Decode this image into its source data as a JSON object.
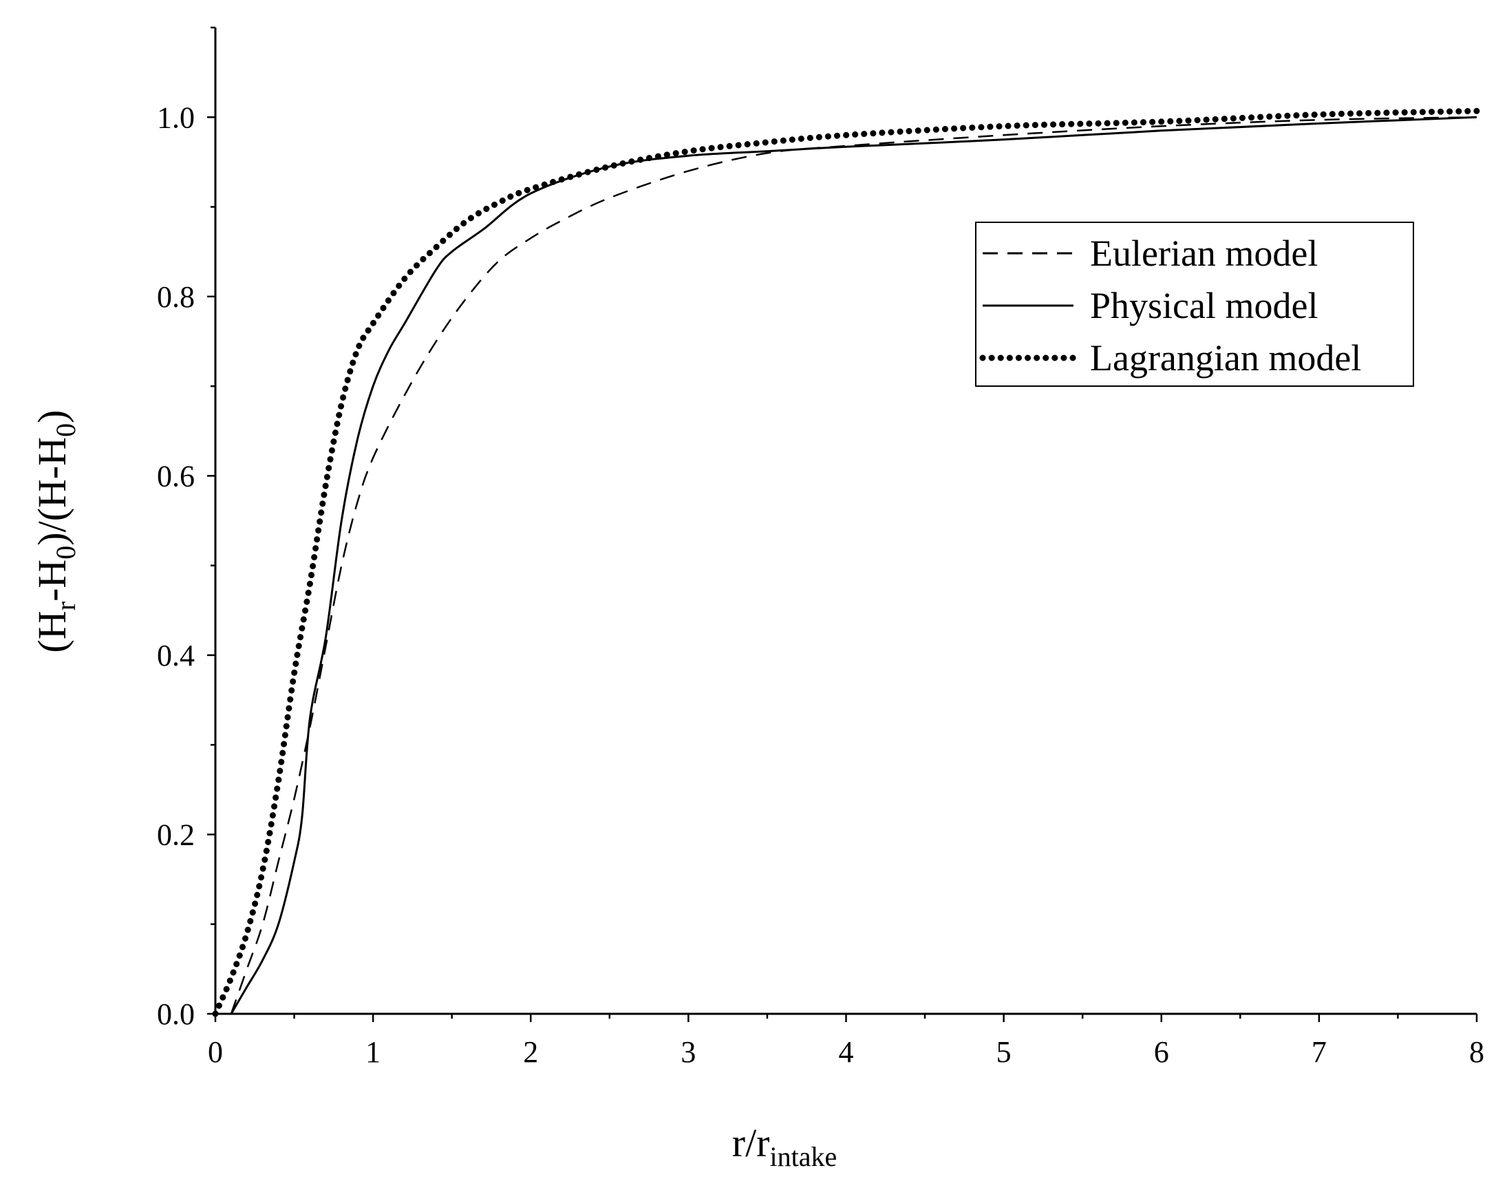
{
  "chart_data": {
    "type": "line",
    "xlabel": {
      "main": "r/r",
      "sub": "intake"
    },
    "ylabel": {
      "p1": "(H",
      "s1": "r",
      "p2": "-H",
      "s2": "0",
      "p3": ")/(H-H",
      "s3": "0",
      "p4": ")"
    },
    "xlim": [
      0,
      8
    ],
    "ylim": [
      0,
      1.1
    ],
    "x_ticks": [
      "0",
      "1",
      "2",
      "3",
      "4",
      "5",
      "6",
      "7",
      "8"
    ],
    "y_ticks": [
      "0.0",
      "0.2",
      "0.4",
      "0.6",
      "0.8",
      "1.0"
    ],
    "grid": false,
    "legend_position": "top-right",
    "series": [
      {
        "name": "Eulerian model",
        "style": "dashed",
        "points": [
          [
            0.1,
            0.0
          ],
          [
            0.2,
            0.05
          ],
          [
            0.3,
            0.1
          ],
          [
            0.4,
            0.17
          ],
          [
            0.5,
            0.24
          ],
          [
            0.6,
            0.32
          ],
          [
            0.7,
            0.41
          ],
          [
            0.8,
            0.5
          ],
          [
            0.9,
            0.57
          ],
          [
            1.0,
            0.62
          ],
          [
            1.2,
            0.69
          ],
          [
            1.4,
            0.75
          ],
          [
            1.6,
            0.8
          ],
          [
            1.8,
            0.84
          ],
          [
            2.0,
            0.865
          ],
          [
            2.2,
            0.885
          ],
          [
            2.5,
            0.91
          ],
          [
            3.0,
            0.94
          ],
          [
            3.5,
            0.96
          ],
          [
            4.0,
            0.968
          ],
          [
            5.0,
            0.98
          ],
          [
            6.0,
            0.99
          ],
          [
            7.0,
            0.997
          ],
          [
            8.0,
            1.0
          ]
        ]
      },
      {
        "name": "Physical model",
        "style": "solid",
        "points": [
          [
            0.1,
            0.0
          ],
          [
            0.2,
            0.03
          ],
          [
            0.3,
            0.06
          ],
          [
            0.4,
            0.1
          ],
          [
            0.5,
            0.17
          ],
          [
            0.55,
            0.22
          ],
          [
            0.6,
            0.33
          ],
          [
            0.7,
            0.42
          ],
          [
            0.8,
            0.55
          ],
          [
            0.9,
            0.64
          ],
          [
            1.0,
            0.7
          ],
          [
            1.1,
            0.74
          ],
          [
            1.2,
            0.77
          ],
          [
            1.4,
            0.83
          ],
          [
            1.5,
            0.85
          ],
          [
            1.7,
            0.875
          ],
          [
            2.0,
            0.915
          ],
          [
            2.5,
            0.945
          ],
          [
            3.0,
            0.957
          ],
          [
            3.5,
            0.962
          ],
          [
            4.0,
            0.967
          ],
          [
            5.0,
            0.975
          ],
          [
            6.0,
            0.985
          ],
          [
            7.0,
            0.993
          ],
          [
            8.0,
            1.0
          ]
        ]
      },
      {
        "name": "Lagrangian model",
        "style": "dotted",
        "points": [
          [
            0.0,
            0.0
          ],
          [
            0.1,
            0.04
          ],
          [
            0.2,
            0.09
          ],
          [
            0.3,
            0.16
          ],
          [
            0.4,
            0.26
          ],
          [
            0.5,
            0.38
          ],
          [
            0.6,
            0.48
          ],
          [
            0.7,
            0.59
          ],
          [
            0.8,
            0.68
          ],
          [
            0.9,
            0.74
          ],
          [
            1.0,
            0.77
          ],
          [
            1.2,
            0.82
          ],
          [
            1.4,
            0.855
          ],
          [
            1.6,
            0.885
          ],
          [
            1.8,
            0.905
          ],
          [
            2.0,
            0.92
          ],
          [
            2.5,
            0.945
          ],
          [
            3.0,
            0.962
          ],
          [
            3.5,
            0.972
          ],
          [
            4.0,
            0.98
          ],
          [
            5.0,
            0.99
          ],
          [
            6.0,
            0.995
          ],
          [
            7.0,
            1.003
          ],
          [
            8.0,
            1.007
          ]
        ]
      }
    ]
  }
}
